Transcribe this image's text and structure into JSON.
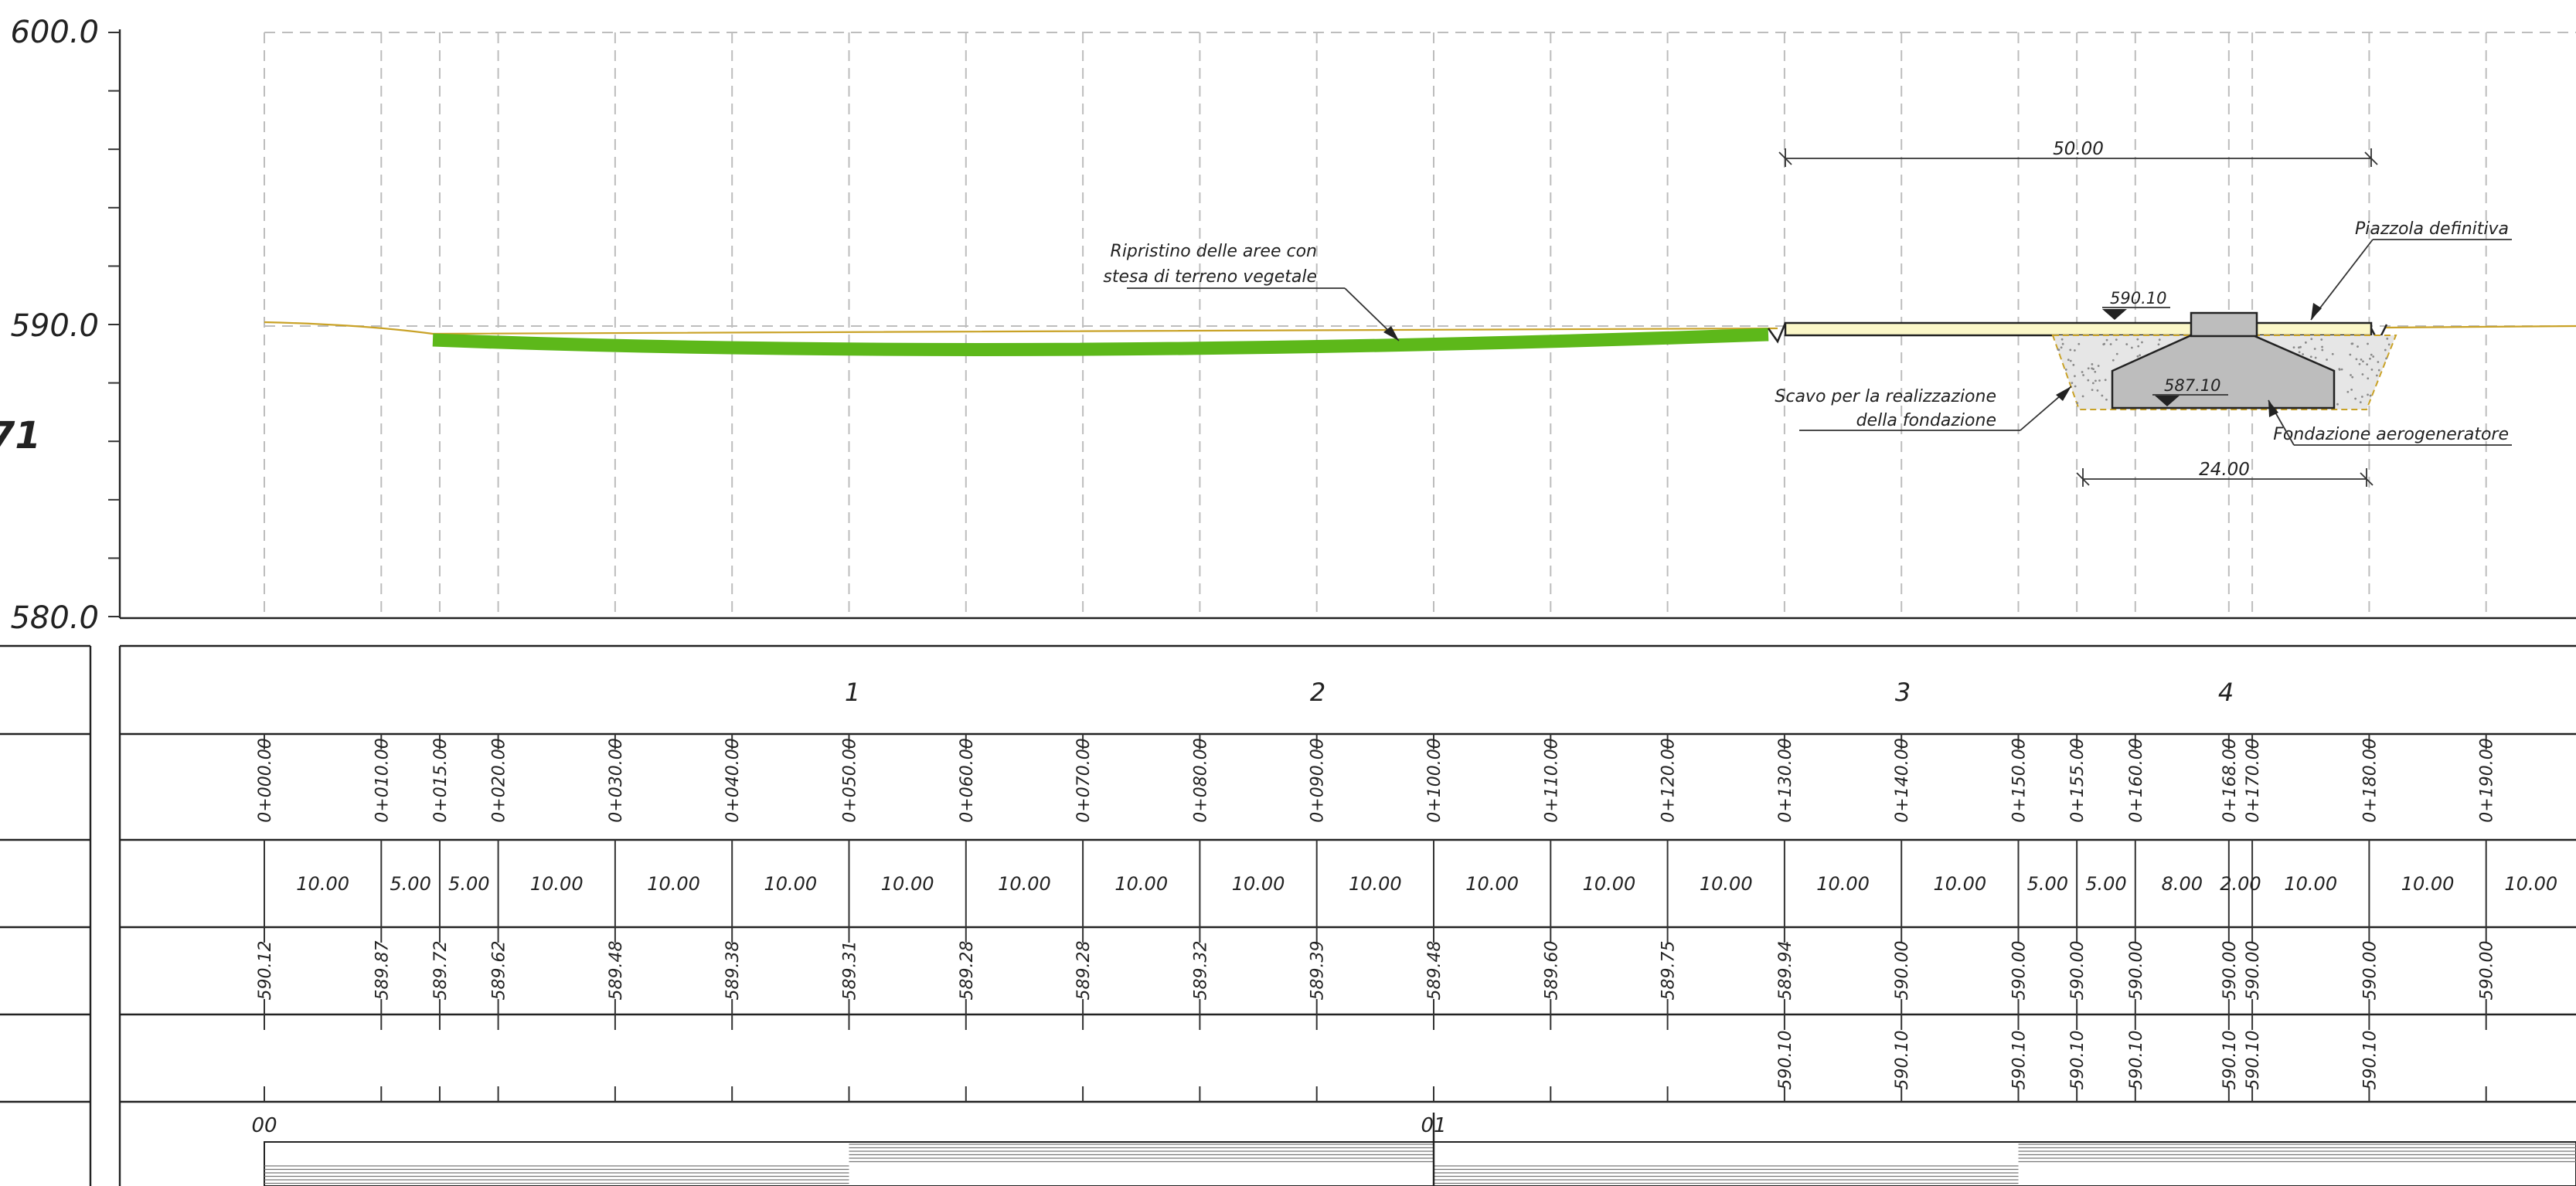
{
  "elevation_axis": {
    "labels": [
      "600.0",
      "590.0",
      "580.0"
    ],
    "values": [
      600,
      590,
      580
    ]
  },
  "side_fragment": "71",
  "annotations": {
    "ripristino": [
      "Ripristino delle aree con",
      "stesa di terreno vegetale"
    ],
    "piazzola": "Piazzola definitiva",
    "scavo": [
      "Scavo per la realizzazione",
      "della fondazione"
    ],
    "fondazione": "Fondazione aerogeneratore",
    "level_top": "590.10",
    "level_bottom": "587.10",
    "dim_platform": "50.00",
    "dim_foundation": "24.00"
  },
  "table": {
    "section_numbers": [
      "1",
      "2",
      "3",
      "4"
    ],
    "chainage_marks": [
      "00",
      "01"
    ],
    "rows": [
      {
        "progressive": "0+000.00",
        "partial": "10.00",
        "terrain": "590.12",
        "project": ""
      },
      {
        "progressive": "0+010.00",
        "partial": "5.00",
        "terrain": "589.87",
        "project": ""
      },
      {
        "progressive": "0+015.00",
        "partial": "5.00",
        "terrain": "589.72",
        "project": ""
      },
      {
        "progressive": "0+020.00",
        "partial": "10.00",
        "terrain": "589.62",
        "project": ""
      },
      {
        "progressive": "0+030.00",
        "partial": "10.00",
        "terrain": "589.48",
        "project": ""
      },
      {
        "progressive": "0+040.00",
        "partial": "10.00",
        "terrain": "589.38",
        "project": ""
      },
      {
        "progressive": "0+050.00",
        "partial": "10.00",
        "terrain": "589.31",
        "project": ""
      },
      {
        "progressive": "0+060.00",
        "partial": "10.00",
        "terrain": "589.28",
        "project": ""
      },
      {
        "progressive": "0+070.00",
        "partial": "10.00",
        "terrain": "589.28",
        "project": ""
      },
      {
        "progressive": "0+080.00",
        "partial": "10.00",
        "terrain": "589.32",
        "project": ""
      },
      {
        "progressive": "0+090.00",
        "partial": "10.00",
        "terrain": "589.39",
        "project": ""
      },
      {
        "progressive": "0+100.00",
        "partial": "10.00",
        "terrain": "589.48",
        "project": ""
      },
      {
        "progressive": "0+110.00",
        "partial": "10.00",
        "terrain": "589.60",
        "project": ""
      },
      {
        "progressive": "0+120.00",
        "partial": "10.00",
        "terrain": "589.75",
        "project": ""
      },
      {
        "progressive": "0+130.00",
        "partial": "10.00",
        "terrain": "589.94",
        "project": "590.10"
      },
      {
        "progressive": "0+140.00",
        "partial": "10.00",
        "terrain": "590.00",
        "project": "590.10"
      },
      {
        "progressive": "0+150.00",
        "partial": "5.00",
        "terrain": "590.00",
        "project": "590.10"
      },
      {
        "progressive": "0+155.00",
        "partial": "5.00",
        "terrain": "590.00",
        "project": "590.10"
      },
      {
        "progressive": "0+160.00",
        "partial": "8.00",
        "terrain": "590.00",
        "project": "590.10"
      },
      {
        "progressive": "0+168.00",
        "partial": "2.00",
        "terrain": "590.00",
        "project": "590.10"
      },
      {
        "progressive": "0+170.00",
        "partial": "10.00",
        "terrain": "590.00",
        "project": "590.10"
      },
      {
        "progressive": "0+180.00",
        "partial": "10.00",
        "terrain": "590.00",
        "project": "590.10"
      },
      {
        "progressive": "0+190.00",
        "partial": "10.00",
        "terrain": "590.00",
        "project": ""
      }
    ]
  },
  "colors": {
    "topsoil": "#5db81a",
    "platform_fill": "#fbf7c8",
    "foundation_fill": "#bdbdbd",
    "excavation_fill": "#e6e6e6",
    "ground_line": "#c9a227"
  }
}
